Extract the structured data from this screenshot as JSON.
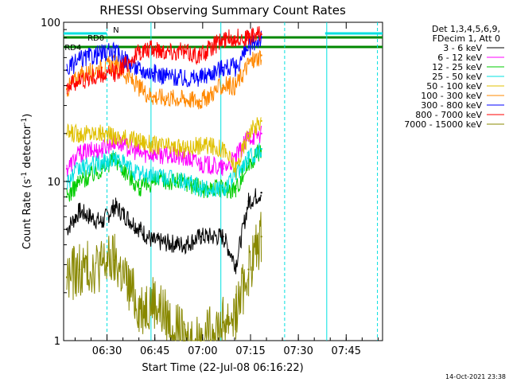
{
  "chart_data": {
    "type": "line",
    "title": "RHESSI Observing Summary Count Rates",
    "xlabel": "Start Time (22-Jul-08 06:16:22)",
    "ylabel": "Count Rate (s",
    "ylabel_sup": "-1",
    "ylabel_tail": " detector",
    "ylabel_sup2": "-1",
    "ylabel_end": ")",
    "timestamp": "14-Oct-2021 23:38",
    "xlim_minutes": [
      0,
      100
    ],
    "ylim": [
      1,
      100
    ],
    "yscale": "log",
    "x_ticks": [
      {
        "label": "06:30",
        "minute": 13.6
      },
      {
        "label": "06:45",
        "minute": 28.6
      },
      {
        "label": "07:00",
        "minute": 43.6
      },
      {
        "label": "07:15",
        "minute": 58.6
      },
      {
        "label": "07:30",
        "minute": 73.6
      },
      {
        "label": "07:45",
        "minute": 88.6
      }
    ],
    "y_ticks": [
      {
        "label": "1",
        "value": 1
      },
      {
        "label": "10",
        "value": 10
      },
      {
        "label": "100",
        "value": 100
      }
    ],
    "legend_header": [
      "Det 1,3,4,5,6,9,",
      "FDecim 1, Att 0"
    ],
    "series": [
      {
        "name": "3 - 6 keV",
        "color": "#000000",
        "x": [
          1,
          5,
          12,
          16,
          24,
          28,
          38,
          43,
          50,
          54,
          58,
          62
        ],
        "y": [
          5,
          6.5,
          5.5,
          7,
          5,
          4.2,
          4,
          4.5,
          4.5,
          3,
          7.5,
          8.5
        ]
      },
      {
        "name": "6 - 12 keV",
        "color": "#ff00ff",
        "x": [
          1,
          5,
          12,
          16,
          24,
          28,
          38,
          43,
          50,
          54,
          58,
          62
        ],
        "y": [
          12,
          15,
          16,
          18,
          15,
          15,
          14,
          13,
          12,
          14,
          19,
          20
        ]
      },
      {
        "name": "12 - 25 keV",
        "color": "#00cc00",
        "x": [
          1,
          5,
          12,
          16,
          24,
          28,
          38,
          43,
          50,
          54,
          58,
          62
        ],
        "y": [
          8,
          10,
          12,
          14,
          9,
          10,
          10,
          9,
          9,
          9,
          13,
          16
        ]
      },
      {
        "name": "25 - 50 keV",
        "color": "#00e0e0",
        "x": [
          1,
          5,
          12,
          16,
          24,
          28,
          38,
          43,
          50,
          54,
          58,
          62
        ],
        "y": [
          10,
          12,
          13,
          14,
          11,
          11,
          10,
          9,
          9,
          11,
          14,
          16
        ]
      },
      {
        "name": "50 - 100 keV",
        "color": "#e0c000",
        "x": [
          1,
          5,
          12,
          16,
          24,
          28,
          38,
          43,
          50,
          54,
          58,
          62
        ],
        "y": [
          20,
          20,
          20,
          19,
          18,
          17,
          16,
          17,
          16,
          12,
          20,
          24
        ]
      },
      {
        "name": "100 - 300 keV",
        "color": "#ff8800",
        "x": [
          1,
          5,
          12,
          16,
          24,
          28,
          38,
          43,
          50,
          54,
          58,
          62
        ],
        "y": [
          38,
          46,
          52,
          55,
          38,
          34,
          33,
          32,
          40,
          40,
          55,
          62
        ]
      },
      {
        "name": "300 - 800 keV",
        "color": "#0000ff",
        "x": [
          1,
          5,
          12,
          16,
          24,
          28,
          38,
          43,
          50,
          54,
          58,
          62
        ],
        "y": [
          50,
          58,
          64,
          65,
          50,
          48,
          44,
          45,
          52,
          52,
          70,
          80
        ]
      },
      {
        "name": "800 - 7000 keV",
        "color": "#ff0000",
        "x": [
          1,
          5,
          12,
          16,
          24,
          28,
          38,
          43,
          50,
          54,
          58,
          62
        ],
        "y": [
          40,
          43,
          46,
          48,
          65,
          68,
          65,
          62,
          78,
          80,
          80,
          84
        ]
      },
      {
        "name": "7000 - 15000 keV",
        "color": "#888800",
        "x": [
          1,
          5,
          12,
          16,
          24,
          28,
          38,
          43,
          50,
          54,
          58,
          62
        ],
        "y": [
          2.5,
          2.8,
          3,
          3.2,
          1.6,
          1.8,
          1,
          1,
          1.3,
          1.5,
          2.8,
          4.5
        ]
      }
    ],
    "flags": [
      {
        "name": "N",
        "color": "#00e0e0",
        "segments": [
          [
            0,
            13.5
          ],
          [
            82,
            100
          ]
        ]
      },
      {
        "name": "RD0",
        "color": "#008800",
        "segments": [
          [
            0,
            100
          ]
        ]
      },
      {
        "name": "RD4",
        "color": "#008800",
        "segments": [
          [
            0,
            100
          ]
        ]
      }
    ],
    "vertical_lines": [
      {
        "minute": 13.6,
        "color": "#00e0e0",
        "style": "dashed"
      },
      {
        "minute": 27.4,
        "color": "#00e0e0",
        "style": "solid"
      },
      {
        "minute": 49.3,
        "color": "#00e0e0",
        "style": "solid"
      },
      {
        "minute": 69.3,
        "color": "#00e0e0",
        "style": "dashed"
      },
      {
        "minute": 82.5,
        "color": "#00e0e0",
        "style": "solid"
      },
      {
        "minute": 98.4,
        "color": "#00e0e0",
        "style": "dashed"
      }
    ]
  }
}
